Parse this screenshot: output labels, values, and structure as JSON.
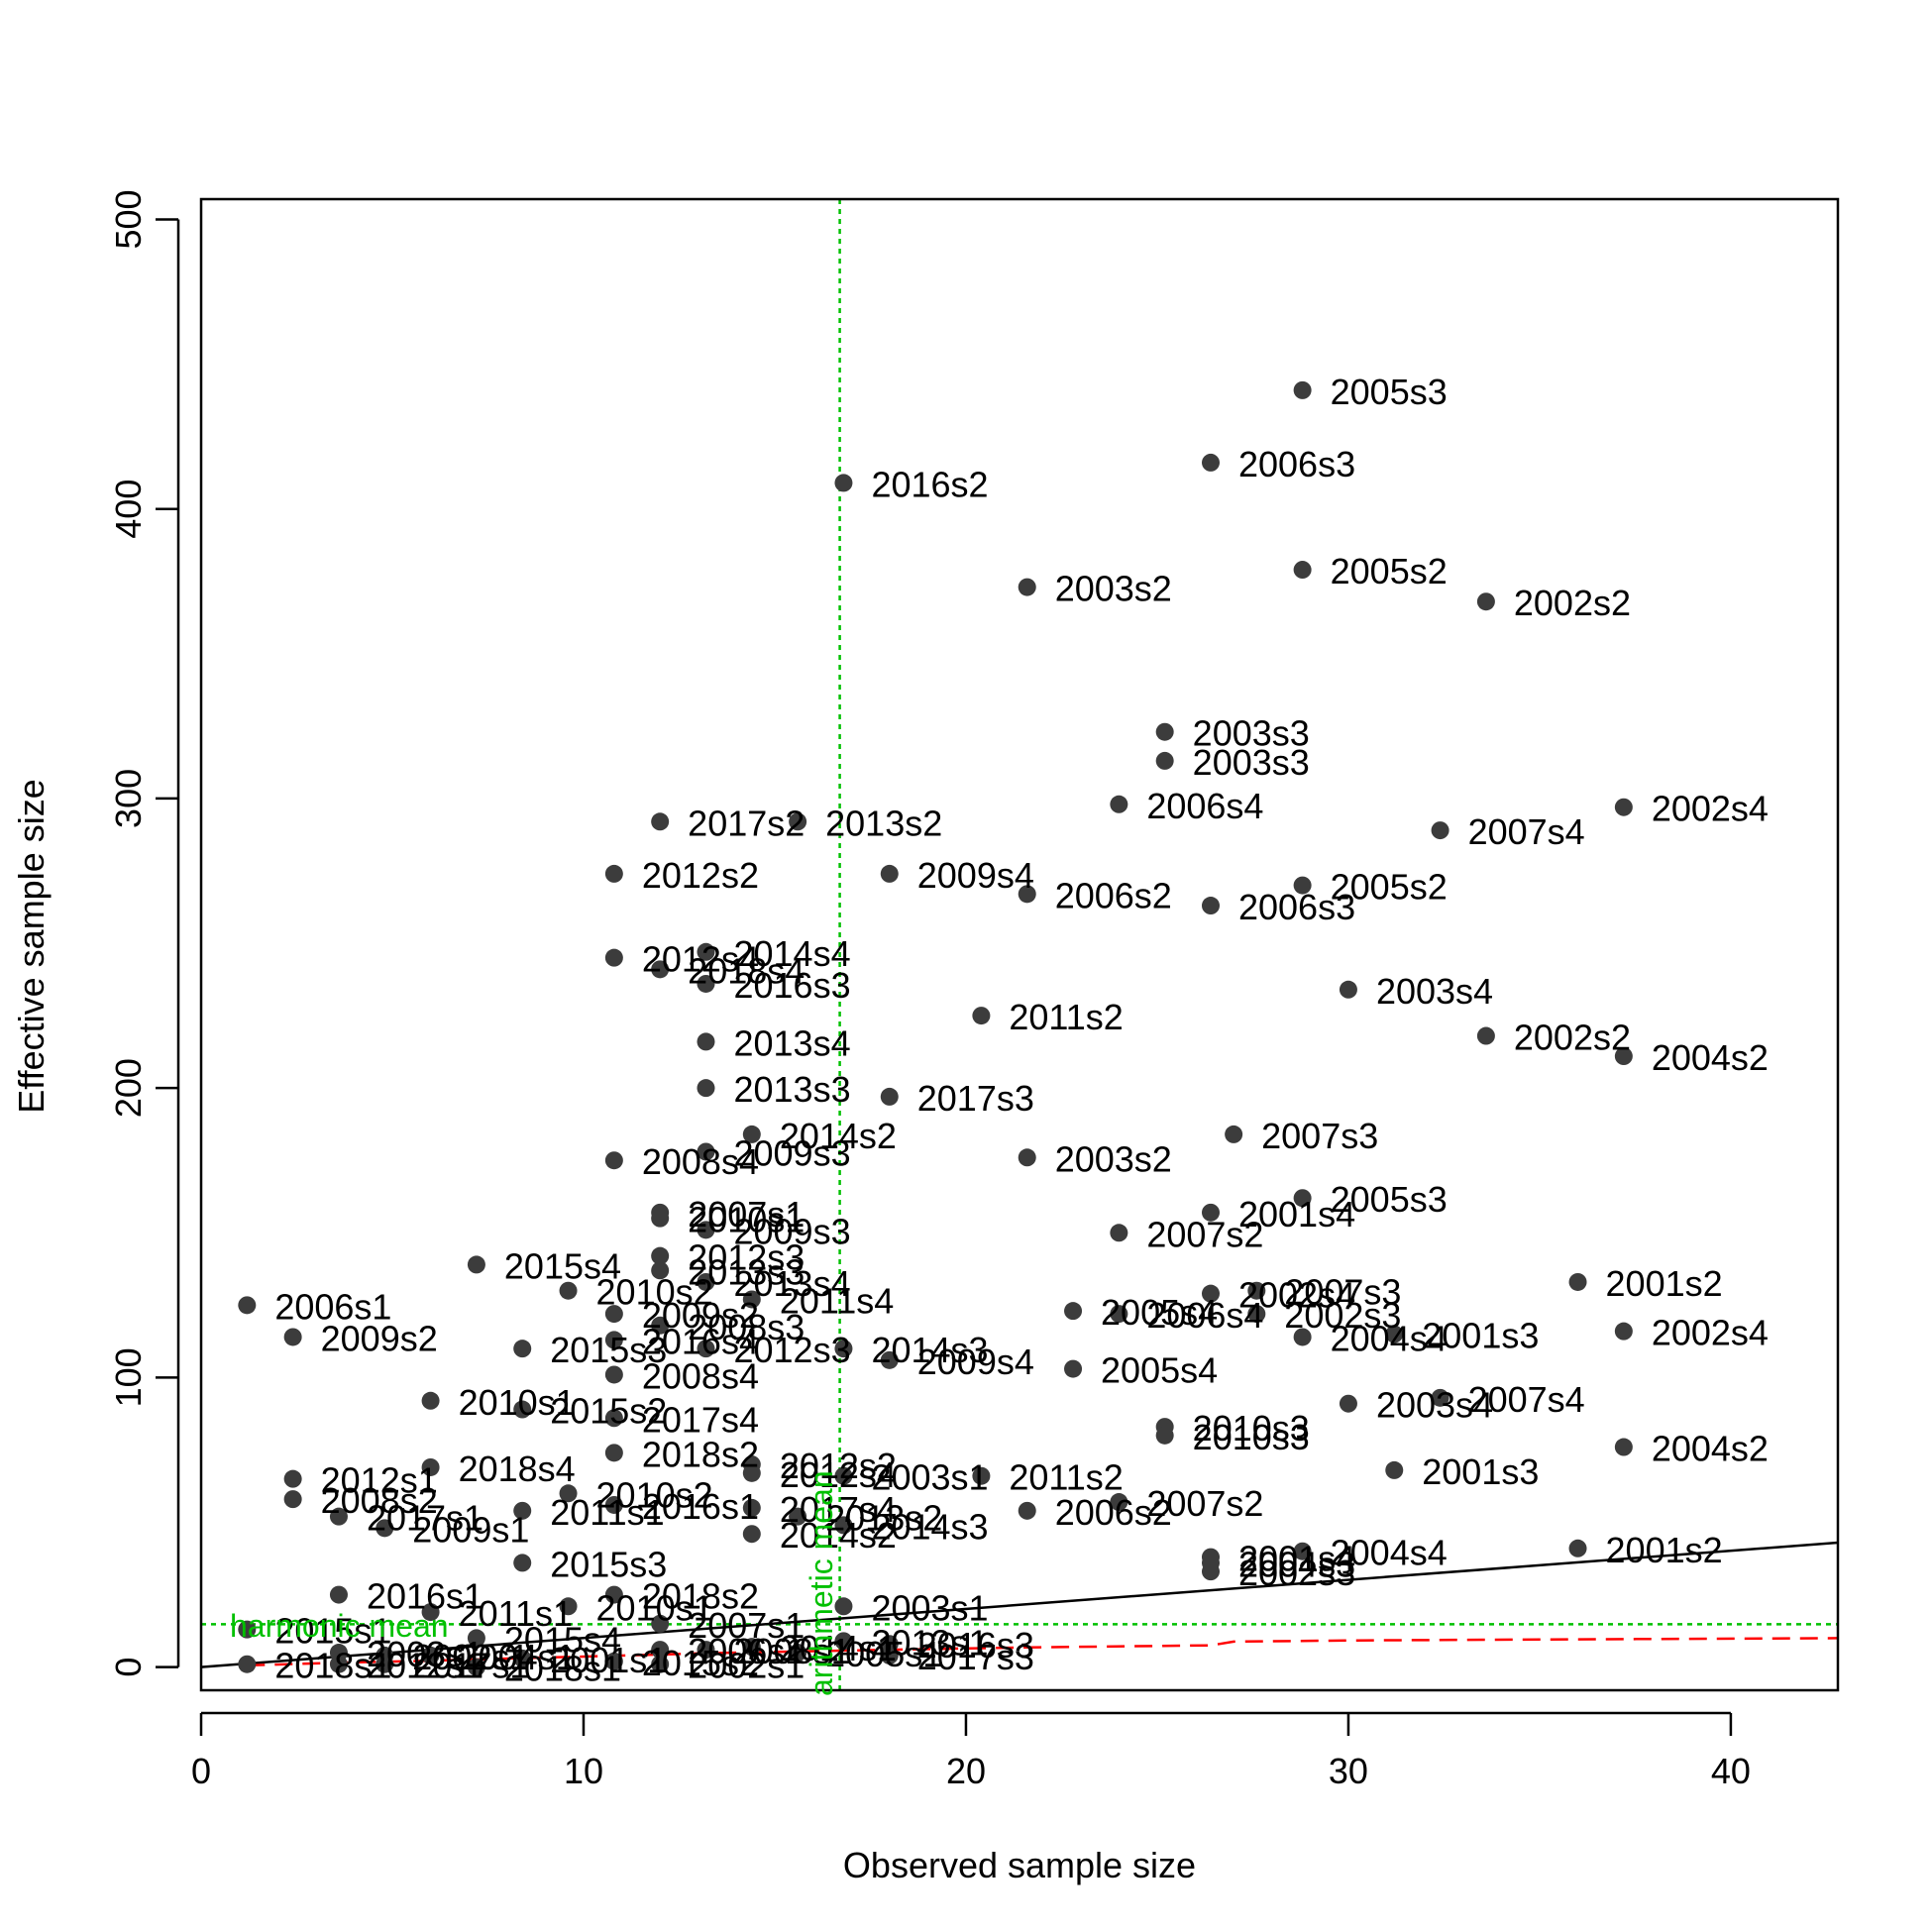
{
  "chart_data": {
    "type": "scatter",
    "title": "",
    "xlabel": "Observed sample size",
    "ylabel": "Effective sample size",
    "xlim": [
      0,
      42.8
    ],
    "ylim": [
      -8,
      507
    ],
    "x_ticks": [
      0,
      10,
      20,
      30,
      40
    ],
    "y_ticks": [
      0,
      100,
      200,
      300,
      400,
      500
    ],
    "grid": false,
    "colors": {
      "points": "#3c3c3c",
      "reference_lines": "#00c000",
      "fit_line": "#000000",
      "dashed_curve": "#ff0000"
    },
    "reference_lines": {
      "harmonic_mean": {
        "label": "harmonic mean",
        "y": 14.8
      },
      "arithmetic_mean": {
        "label": "arithmetic mean",
        "x": 16.7
      }
    },
    "fit_line": {
      "from": [
        0,
        0
      ],
      "to": [
        42.8,
        43
      ]
    },
    "dashed_curve": [
      [
        1.2,
        0.6
      ],
      [
        3.6,
        1.5
      ],
      [
        6,
        2.2
      ],
      [
        8.4,
        3.1
      ],
      [
        10.8,
        3.9
      ],
      [
        13.2,
        4.8
      ],
      [
        15.6,
        5.4
      ],
      [
        18,
        6
      ],
      [
        21.6,
        6.8
      ],
      [
        26.4,
        7.5
      ],
      [
        27,
        8.8
      ],
      [
        30,
        9.2
      ],
      [
        36,
        9.6
      ],
      [
        42.8,
        10
      ]
    ],
    "points": [
      {
        "x": 28.8,
        "y": 441,
        "label": "2005s3"
      },
      {
        "x": 26.4,
        "y": 416,
        "label": "2006s3"
      },
      {
        "x": 16.8,
        "y": 409,
        "label": "2016s2"
      },
      {
        "x": 28.8,
        "y": 379,
        "label": "2005s2"
      },
      {
        "x": 21.6,
        "y": 373,
        "label": "2003s2"
      },
      {
        "x": 33.6,
        "y": 368,
        "label": "2002s2"
      },
      {
        "x": 25.2,
        "y": 323,
        "label": "2003s3"
      },
      {
        "x": 25.2,
        "y": 313,
        "label": "2003s3"
      },
      {
        "x": 24.0,
        "y": 298,
        "label": "2006s4"
      },
      {
        "x": 37.2,
        "y": 297,
        "label": "2002s4"
      },
      {
        "x": 12.0,
        "y": 292,
        "label": "2017s2"
      },
      {
        "x": 15.6,
        "y": 292,
        "label": "2013s2"
      },
      {
        "x": 32.4,
        "y": 289,
        "label": "2007s4"
      },
      {
        "x": 10.8,
        "y": 274,
        "label": "2012s2"
      },
      {
        "x": 18.0,
        "y": 274,
        "label": "2009s4"
      },
      {
        "x": 21.6,
        "y": 267,
        "label": "2006s2"
      },
      {
        "x": 28.8,
        "y": 270,
        "label": "2005s2"
      },
      {
        "x": 26.4,
        "y": 263,
        "label": "2006s3"
      },
      {
        "x": 10.8,
        "y": 245,
        "label": "2012s4"
      },
      {
        "x": 13.2,
        "y": 247,
        "label": "2014s4"
      },
      {
        "x": 12.0,
        "y": 241,
        "label": "2018s4"
      },
      {
        "x": 13.2,
        "y": 236,
        "label": "2016s3"
      },
      {
        "x": 30.0,
        "y": 234,
        "label": "2003s4"
      },
      {
        "x": 20.4,
        "y": 225,
        "label": "2011s2"
      },
      {
        "x": 33.6,
        "y": 218,
        "label": "2002s2"
      },
      {
        "x": 13.2,
        "y": 216,
        "label": "2013s4"
      },
      {
        "x": 37.2,
        "y": 211,
        "label": "2004s2"
      },
      {
        "x": 13.2,
        "y": 200,
        "label": "2013s3"
      },
      {
        "x": 18.0,
        "y": 197,
        "label": "2017s3"
      },
      {
        "x": 14.4,
        "y": 184,
        "label": "2014s2"
      },
      {
        "x": 27.0,
        "y": 184,
        "label": "2007s3"
      },
      {
        "x": 13.2,
        "y": 178,
        "label": "2009s3"
      },
      {
        "x": 21.6,
        "y": 176,
        "label": "2003s2"
      },
      {
        "x": 10.8,
        "y": 175,
        "label": "2008s4"
      },
      {
        "x": 28.8,
        "y": 162,
        "label": "2005s3"
      },
      {
        "x": 12.0,
        "y": 157,
        "label": "2007s1"
      },
      {
        "x": 12.0,
        "y": 155,
        "label": "2010s1"
      },
      {
        "x": 26.4,
        "y": 157,
        "label": "2001s4"
      },
      {
        "x": 13.2,
        "y": 151,
        "label": "2009s3"
      },
      {
        "x": 24.0,
        "y": 150,
        "label": "2007s2"
      },
      {
        "x": 7.2,
        "y": 139,
        "label": "2015s4"
      },
      {
        "x": 12.0,
        "y": 142,
        "label": "2012s3"
      },
      {
        "x": 12.0,
        "y": 137,
        "label": "2013s3"
      },
      {
        "x": 13.2,
        "y": 133,
        "label": "2013s4"
      },
      {
        "x": 36.0,
        "y": 133,
        "label": "2001s2"
      },
      {
        "x": 9.6,
        "y": 130,
        "label": "2010s2"
      },
      {
        "x": 14.4,
        "y": 127,
        "label": "2011s4"
      },
      {
        "x": 1.2,
        "y": 125,
        "label": "2006s1"
      },
      {
        "x": 27.6,
        "y": 130,
        "label": "2007s3"
      },
      {
        "x": 26.4,
        "y": 129,
        "label": "2002s4"
      },
      {
        "x": 22.8,
        "y": 123,
        "label": "2005s4"
      },
      {
        "x": 24.0,
        "y": 122,
        "label": "2006s4"
      },
      {
        "x": 27.6,
        "y": 122,
        "label": "2002s3"
      },
      {
        "x": 10.8,
        "y": 122,
        "label": "2009s2"
      },
      {
        "x": 12.0,
        "y": 118,
        "label": "2008s3"
      },
      {
        "x": 2.4,
        "y": 114,
        "label": "2009s2"
      },
      {
        "x": 37.2,
        "y": 116,
        "label": "2002s4"
      },
      {
        "x": 31.2,
        "y": 115,
        "label": "2001s3"
      },
      {
        "x": 28.8,
        "y": 114,
        "label": "2004s4"
      },
      {
        "x": 10.8,
        "y": 113,
        "label": "2016s4"
      },
      {
        "x": 13.2,
        "y": 110,
        "label": "2012s3"
      },
      {
        "x": 8.4,
        "y": 110,
        "label": "2015s3"
      },
      {
        "x": 16.8,
        "y": 110,
        "label": "2014s3"
      },
      {
        "x": 18.0,
        "y": 106,
        "label": "2009s4"
      },
      {
        "x": 22.8,
        "y": 103,
        "label": "2005s4"
      },
      {
        "x": 10.8,
        "y": 101,
        "label": "2008s4"
      },
      {
        "x": 6.0,
        "y": 92,
        "label": "2010s1"
      },
      {
        "x": 32.4,
        "y": 93,
        "label": "2007s4"
      },
      {
        "x": 30.0,
        "y": 91,
        "label": "2003s4"
      },
      {
        "x": 8.4,
        "y": 89,
        "label": "2015s2"
      },
      {
        "x": 10.8,
        "y": 86,
        "label": "2017s4"
      },
      {
        "x": 25.2,
        "y": 83,
        "label": "2010s3"
      },
      {
        "x": 25.2,
        "y": 80,
        "label": "2010s3"
      },
      {
        "x": 37.2,
        "y": 76,
        "label": "2004s2"
      },
      {
        "x": 10.8,
        "y": 74,
        "label": "2018s2"
      },
      {
        "x": 14.4,
        "y": 70,
        "label": "2012s2"
      },
      {
        "x": 6.0,
        "y": 69,
        "label": "2018s4"
      },
      {
        "x": 14.4,
        "y": 67,
        "label": "2012s4"
      },
      {
        "x": 31.2,
        "y": 68,
        "label": "2001s3"
      },
      {
        "x": 20.4,
        "y": 66,
        "label": "2011s2"
      },
      {
        "x": 16.8,
        "y": 66,
        "label": "2003s1"
      },
      {
        "x": 2.4,
        "y": 65,
        "label": "2012s1"
      },
      {
        "x": 9.6,
        "y": 60,
        "label": "2010s2"
      },
      {
        "x": 2.4,
        "y": 58,
        "label": "2008s2"
      },
      {
        "x": 10.8,
        "y": 56,
        "label": "2016s1"
      },
      {
        "x": 24.0,
        "y": 57,
        "label": "2007s2"
      },
      {
        "x": 21.6,
        "y": 54,
        "label": "2006s2"
      },
      {
        "x": 8.4,
        "y": 54,
        "label": "2011s1"
      },
      {
        "x": 14.4,
        "y": 55,
        "label": "2017s4"
      },
      {
        "x": 3.6,
        "y": 52,
        "label": "2017s1"
      },
      {
        "x": 15.6,
        "y": 52,
        "label": "2013s2"
      },
      {
        "x": 16.8,
        "y": 49,
        "label": "2014s3"
      },
      {
        "x": 4.8,
        "y": 48,
        "label": "2009s1"
      },
      {
        "x": 14.4,
        "y": 46,
        "label": "2014s2"
      },
      {
        "x": 36.0,
        "y": 41,
        "label": "2001s2"
      },
      {
        "x": 28.8,
        "y": 40,
        "label": "2004s4"
      },
      {
        "x": 26.4,
        "y": 38,
        "label": "2001s4"
      },
      {
        "x": 26.4,
        "y": 36,
        "label": "2004s3"
      },
      {
        "x": 8.4,
        "y": 36,
        "label": "2015s3"
      },
      {
        "x": 26.4,
        "y": 33,
        "label": "2002s3"
      },
      {
        "x": 3.6,
        "y": 25,
        "label": "2016s1"
      },
      {
        "x": 10.8,
        "y": 25,
        "label": "2018s2"
      },
      {
        "x": 16.8,
        "y": 21,
        "label": "2003s1"
      },
      {
        "x": 9.6,
        "y": 21,
        "label": "2010s1"
      },
      {
        "x": 6.0,
        "y": 19,
        "label": "2011s1"
      },
      {
        "x": 12.0,
        "y": 15,
        "label": "2007s1"
      },
      {
        "x": 1.2,
        "y": 13,
        "label": "2015s1"
      },
      {
        "x": 7.2,
        "y": 10,
        "label": "2015s4"
      },
      {
        "x": 16.8,
        "y": 9,
        "label": "2013s1"
      },
      {
        "x": 18.0,
        "y": 8,
        "label": "2016s3"
      },
      {
        "x": 14.4,
        "y": 7,
        "label": "2014s1"
      },
      {
        "x": 13.2,
        "y": 6,
        "label": "2008s1"
      },
      {
        "x": 12.0,
        "y": 6,
        "label": "2006s1"
      },
      {
        "x": 15.6,
        "y": 5,
        "label": "2005s1"
      },
      {
        "x": 3.6,
        "y": 5,
        "label": "2003s1"
      },
      {
        "x": 6.0,
        "y": 4,
        "label": "2004s1"
      },
      {
        "x": 4.8,
        "y": 4,
        "label": "2002s1"
      },
      {
        "x": 8.4,
        "y": 3,
        "label": "2001s1"
      },
      {
        "x": 18.0,
        "y": 4,
        "label": "2017s3"
      },
      {
        "x": 10.8,
        "y": 2,
        "label": "2015s2"
      },
      {
        "x": 12.0,
        "y": 1,
        "label": "2002s1"
      },
      {
        "x": 1.2,
        "y": 1,
        "label": "2018s1"
      },
      {
        "x": 3.6,
        "y": 1,
        "label": "2012s1"
      },
      {
        "x": 4.8,
        "y": 1,
        "label": "2017s1"
      },
      {
        "x": 7.2,
        "y": 0,
        "label": "2018s1"
      }
    ]
  }
}
